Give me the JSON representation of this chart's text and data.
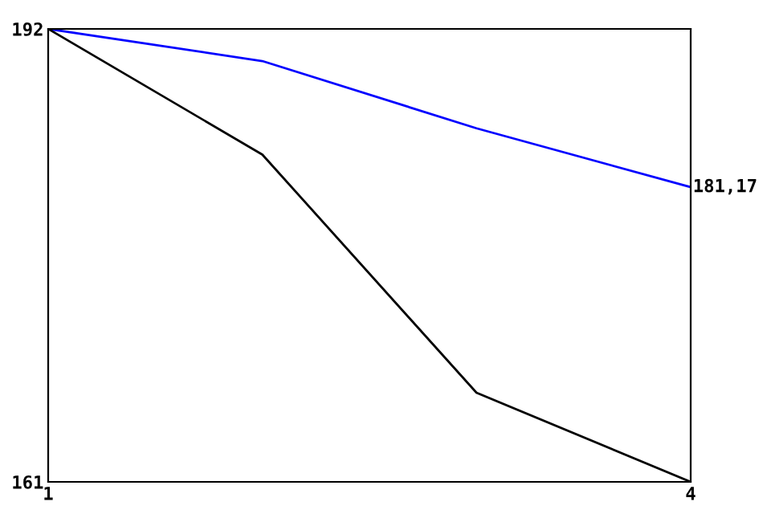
{
  "chart_data": {
    "type": "line",
    "x": [
      1,
      2,
      3,
      4
    ],
    "xlim": [
      1,
      4
    ],
    "xticks": [
      1,
      4
    ],
    "ylim": [
      161,
      192
    ],
    "yticks": [
      161,
      192
    ],
    "grid": false,
    "legend": false,
    "series": [
      {
        "color": "#0000ff",
        "values": [
          192,
          189.8,
          185.2,
          181.17
        ],
        "value_labels": [
          null,
          null,
          null,
          "181,17"
        ]
      },
      {
        "color": "#000000",
        "values": [
          192,
          183.4,
          167.1,
          161
        ]
      }
    ]
  }
}
